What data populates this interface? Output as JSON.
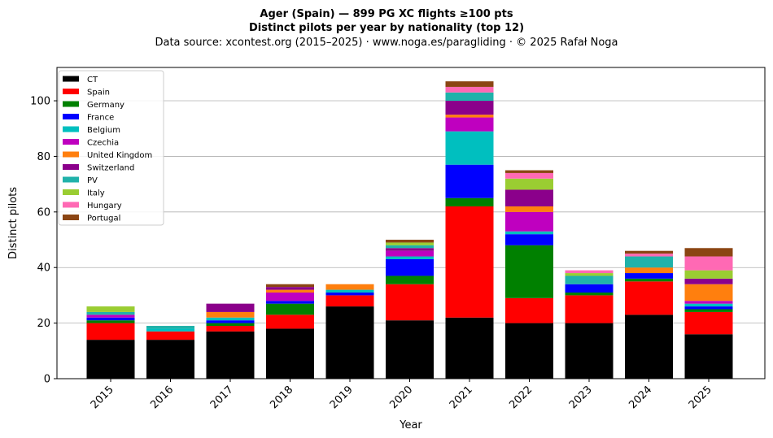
{
  "chart_data": {
    "type": "bar",
    "stacked": true,
    "title": "Ager (Spain)  —  899 PG XC flights ≥100 pts",
    "subtitle": "Distinct pilots per year by nationality (top 12)",
    "source": "Data source: xcontest.org (2015–2025)  ·  www.noga.es/paragliding  ·  © 2025 Rafał Noga",
    "xlabel": "Year",
    "ylabel": "Distinct pilots",
    "ylim": [
      0,
      112
    ],
    "yticks": [
      0,
      20,
      40,
      60,
      80,
      100
    ],
    "grid": "horizontal",
    "legend_position": "top-left",
    "categories": [
      "2015",
      "2016",
      "2017",
      "2018",
      "2019",
      "2020",
      "2021",
      "2022",
      "2023",
      "2024",
      "2025"
    ],
    "series": [
      {
        "name": "CT",
        "color": "#000000",
        "values": [
          14,
          14,
          17,
          18,
          26,
          21,
          22,
          20,
          20,
          23,
          16
        ]
      },
      {
        "name": "Spain",
        "color": "#ff0000",
        "values": [
          6,
          3,
          2,
          5,
          4,
          13,
          40,
          9,
          10,
          12,
          8
        ]
      },
      {
        "name": "Germany",
        "color": "#008000",
        "values": [
          1,
          0,
          1,
          4,
          0,
          3,
          3,
          19,
          1,
          1,
          1
        ]
      },
      {
        "name": "France",
        "color": "#0000ff",
        "values": [
          1,
          0,
          1,
          1,
          1,
          6,
          12,
          4,
          3,
          2,
          1
        ]
      },
      {
        "name": "Belgium",
        "color": "#00bfbf",
        "values": [
          0,
          1,
          1,
          0,
          1,
          1,
          12,
          1,
          0,
          0,
          1
        ]
      },
      {
        "name": "Czechia",
        "color": "#bf00bf",
        "values": [
          1,
          0,
          0,
          3,
          0,
          2,
          5,
          7,
          0,
          0,
          1
        ]
      },
      {
        "name": "United Kingdom",
        "color": "#ff7f0e",
        "values": [
          0,
          0,
          2,
          1,
          2,
          0,
          1,
          2,
          0,
          2,
          6
        ]
      },
      {
        "name": "Switzerland",
        "color": "#8b008b",
        "values": [
          0,
          0,
          3,
          1,
          0,
          1,
          5,
          6,
          0,
          0,
          2
        ]
      },
      {
        "name": "PV",
        "color": "#20b2aa",
        "values": [
          1,
          1,
          0,
          0,
          0,
          1,
          3,
          0,
          3,
          4,
          0
        ]
      },
      {
        "name": "Italy",
        "color": "#9acd32",
        "values": [
          2,
          0,
          0,
          0,
          0,
          1,
          0,
          4,
          1,
          0,
          3
        ]
      },
      {
        "name": "Hungary",
        "color": "#ff69b4",
        "values": [
          0,
          0,
          0,
          0,
          0,
          0,
          2,
          2,
          1,
          1,
          5
        ]
      },
      {
        "name": "Portugal",
        "color": "#8b4513",
        "values": [
          0,
          0,
          0,
          1,
          0,
          1,
          2,
          1,
          0,
          1,
          3
        ]
      }
    ]
  }
}
